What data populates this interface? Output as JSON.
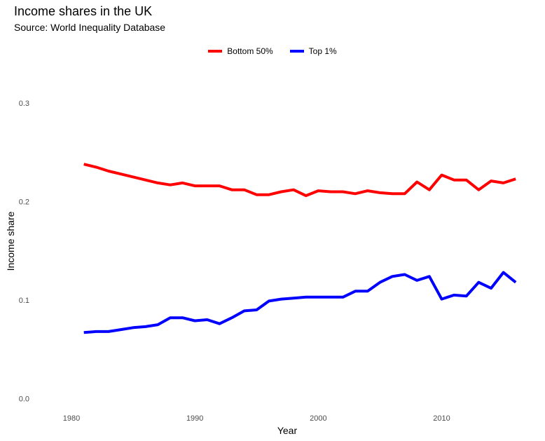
{
  "chart_data": {
    "type": "line",
    "title": "Income shares in the UK",
    "subtitle": "Source: World Inequality Database",
    "xlabel": "Year",
    "ylabel": "Income share",
    "xlim": [
      1977.5,
      2016.5
    ],
    "ylim": [
      -0.004,
      0.33
    ],
    "x_ticks": [
      1980,
      1990,
      2000,
      2010
    ],
    "y_ticks": [
      0.0,
      0.1,
      0.2,
      0.3
    ],
    "y_tick_labels": [
      "0.0",
      "0.1",
      "0.2",
      "0.3"
    ],
    "grid": false,
    "legend_position": "top",
    "x": [
      1981,
      1982,
      1983,
      1984,
      1985,
      1986,
      1987,
      1988,
      1989,
      1990,
      1991,
      1992,
      1993,
      1994,
      1995,
      1996,
      1997,
      1998,
      1999,
      2000,
      2001,
      2002,
      2003,
      2004,
      2005,
      2006,
      2007,
      2008,
      2009,
      2010,
      2011,
      2012,
      2013,
      2014,
      2015,
      2016
    ],
    "series": [
      {
        "name": "Bottom 50%",
        "color": "#ff0000",
        "values": [
          0.238,
          0.235,
          0.231,
          0.228,
          0.225,
          0.222,
          0.219,
          0.217,
          0.219,
          0.216,
          0.216,
          0.216,
          0.212,
          0.212,
          0.207,
          0.207,
          0.21,
          0.212,
          0.206,
          0.211,
          0.21,
          0.21,
          0.208,
          0.211,
          0.209,
          0.208,
          0.208,
          0.22,
          0.212,
          0.227,
          0.222,
          0.222,
          0.212,
          0.221,
          0.219,
          0.223
        ]
      },
      {
        "name": "Top 1%",
        "color": "#0000ff",
        "values": [
          0.067,
          0.068,
          0.068,
          0.07,
          0.072,
          0.073,
          0.075,
          0.082,
          0.082,
          0.079,
          0.08,
          0.076,
          0.082,
          0.089,
          0.09,
          0.099,
          0.101,
          0.102,
          0.103,
          0.103,
          0.103,
          0.103,
          0.109,
          0.109,
          0.118,
          0.124,
          0.126,
          0.12,
          0.124,
          0.101,
          0.105,
          0.104,
          0.118,
          0.112,
          0.128,
          0.118
        ]
      }
    ]
  }
}
